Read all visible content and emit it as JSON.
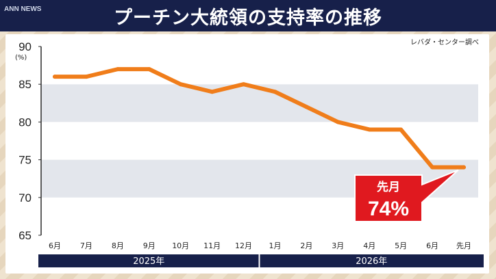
{
  "title": "プーチン大統領の支持率の推移",
  "logo": "ANN NEWS",
  "source": "レバダ・センター調べ",
  "y_unit": "(%)",
  "colors": {
    "line": "#f07d1a",
    "band": "#e3e6ec",
    "title_bg": "#17204a",
    "callout": "#e0191f",
    "year_bar": "#17204a"
  },
  "callout": {
    "label": "先月",
    "value": "74%"
  },
  "year_labels": [
    "2025年",
    "2026年"
  ],
  "chart_data": {
    "type": "line",
    "categories": [
      "6月",
      "7月",
      "8月",
      "9月",
      "10月",
      "11月",
      "12月",
      "1月",
      "2月",
      "3月",
      "4月",
      "5月",
      "6月",
      "先月"
    ],
    "series": [
      {
        "values": [
          86,
          86,
          87,
          87,
          85,
          84,
          85,
          84,
          82,
          80,
          79,
          79,
          74,
          74
        ]
      }
    ],
    "ylim": [
      65,
      90
    ],
    "yticks": [
      65,
      70,
      75,
      80,
      85,
      90
    ],
    "grid": "alternating-bands",
    "title": "プーチン大統領の支持率の推移",
    "xlabel": "",
    "ylabel": "(%)"
  }
}
